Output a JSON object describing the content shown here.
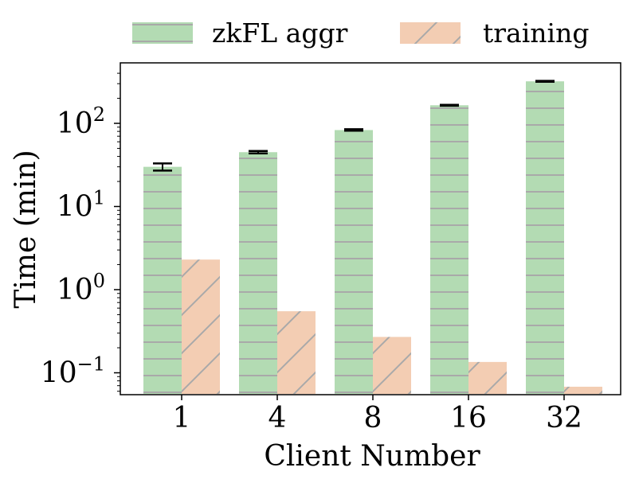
{
  "chart_data": {
    "type": "bar",
    "title": "",
    "xlabel": "Client Number",
    "ylabel": "Time (min)",
    "yscale": "log",
    "ylim": [
      0.045,
      400
    ],
    "grid": false,
    "legend_position": "top, outside plot",
    "categories": [
      "1",
      "4",
      "8",
      "16",
      "32"
    ],
    "series": [
      {
        "name": "zkFL aggr",
        "color": "#b3dbb3",
        "hatch": "horizontal lines",
        "values": [
          30,
          45,
          83,
          165,
          320
        ],
        "error_low": [
          27,
          43.5,
          81.5,
          163,
          316
        ],
        "error_high": [
          33,
          46.5,
          85,
          167,
          324
        ]
      },
      {
        "name": "training",
        "color": "#f3cdb3",
        "hatch": "diagonal lines",
        "values": [
          2.3,
          0.55,
          0.27,
          0.135,
          0.068
        ]
      }
    ],
    "y_ticks": [
      {
        "value": 0.1,
        "base": "10",
        "exp": "−1"
      },
      {
        "value": 1,
        "base": "10",
        "exp": "0"
      },
      {
        "value": 10,
        "base": "10",
        "exp": "1"
      },
      {
        "value": 100,
        "base": "10",
        "exp": "2"
      }
    ]
  }
}
